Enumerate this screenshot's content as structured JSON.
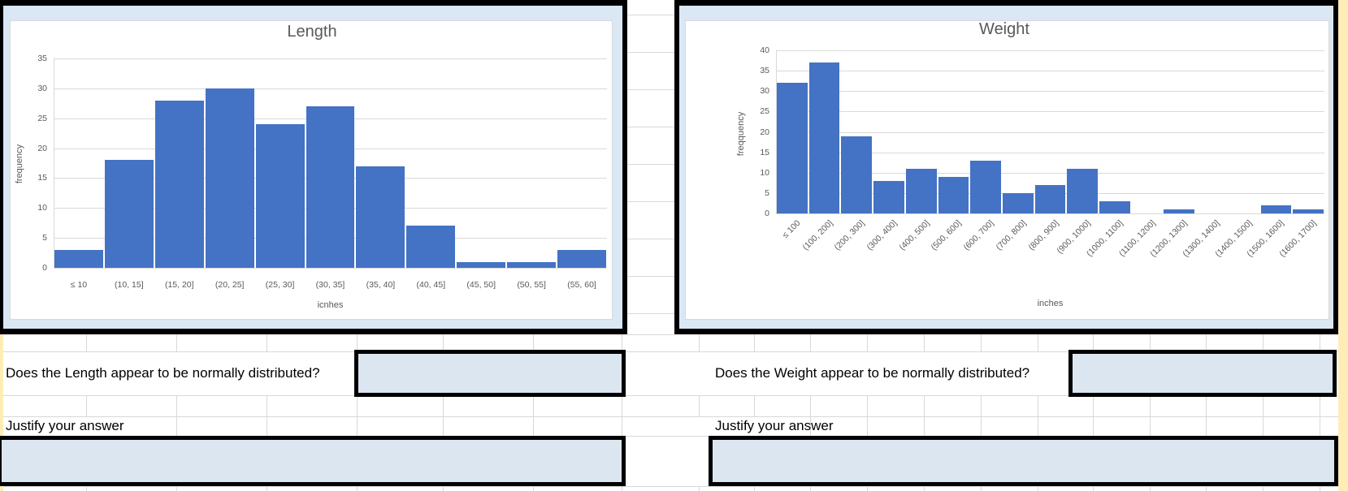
{
  "chart_data": [
    {
      "type": "bar",
      "title": "Length",
      "xlabel": "icnhes",
      "ylabel": "frequency",
      "categories": [
        "≤ 10",
        "(10, 15]",
        "(15, 20]",
        "(20, 25]",
        "(25, 30]",
        "(30, 35]",
        "(35, 40]",
        "(40, 45]",
        "(45, 50]",
        "(50, 55]",
        "(55, 60]"
      ],
      "values": [
        3,
        18,
        28,
        30,
        24,
        27,
        17,
        7,
        1,
        1,
        3
      ],
      "y_ticks": [
        0,
        5,
        10,
        15,
        20,
        25,
        30,
        35
      ],
      "ylim": [
        0,
        35
      ],
      "grid": true,
      "legend": "none",
      "bar_color": "#4472C4",
      "tick_label_rotation": 0
    },
    {
      "type": "bar",
      "title": "Weight",
      "xlabel": "inches",
      "ylabel": "freqquency",
      "categories": [
        "≤ 100",
        "(100, 200]",
        "(200, 300]",
        "(300, 400]",
        "(400, 500]",
        "(500, 600]",
        "(600, 700]",
        "(700, 800]",
        "(800, 900]",
        "(900, 1000]",
        "(1000, 1100]",
        "(1100, 1200]",
        "(1200, 1300]",
        "(1300, 1400]",
        "(1400, 1500]",
        "(1500, 1600]",
        "(1600, 1700]"
      ],
      "values": [
        32,
        37,
        19,
        8,
        11,
        9,
        13,
        5,
        7,
        11,
        3,
        0,
        1,
        0,
        0,
        2,
        1
      ],
      "y_ticks": [
        0,
        5,
        10,
        15,
        20,
        25,
        30,
        35,
        40
      ],
      "ylim": [
        0,
        40
      ],
      "grid": true,
      "legend": "none",
      "bar_color": "#4472C4",
      "tick_label_rotation": 45
    }
  ],
  "qa": {
    "length": {
      "question": "Does the Length appear to be normally distributed?",
      "justify_label": "Justify your answer",
      "answer_value": "",
      "justification_value": ""
    },
    "weight": {
      "question": "Does the Weight appear to be normally distributed?",
      "justify_label": "Justify your answer",
      "answer_value": "",
      "justification_value": ""
    }
  },
  "colors": {
    "bar": "#4472C4",
    "chart_background": "#DAE7F5",
    "answer_cell_fill": "#DCE6F1",
    "highlight_strip": "#FFEDB8",
    "chart_text": "#595959",
    "chart_grid_line": "#D9D9D9",
    "sheet_grid_line": "#D8D8D8"
  }
}
